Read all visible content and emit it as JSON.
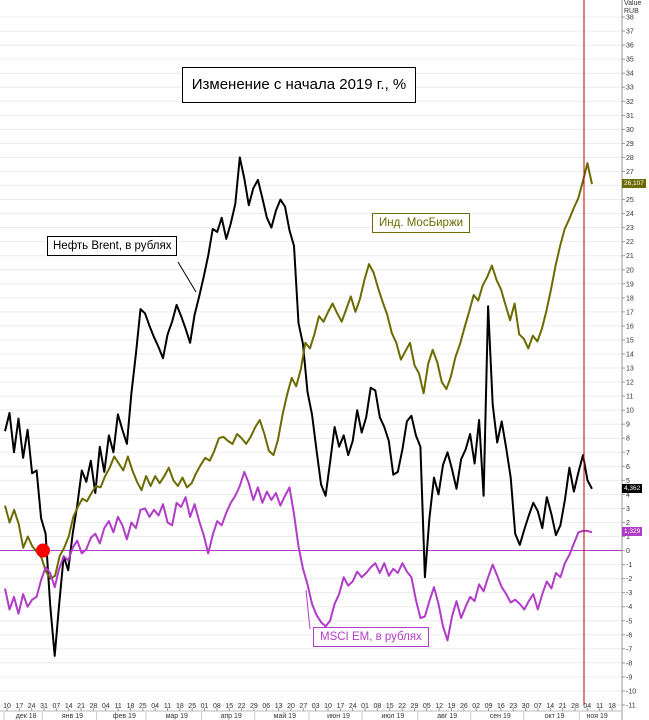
{
  "title": "Изменение с начала 2019 г., %",
  "unit_header": [
    "Value",
    "RUB"
  ],
  "chart_data": {
    "type": "line",
    "ylim": [
      -11,
      39
    ],
    "y_ticks": [
      -11,
      -10,
      -9,
      -8,
      -7,
      -6,
      -5,
      -4,
      -3,
      -2,
      -1,
      0,
      1,
      2,
      3,
      4,
      5,
      6,
      7,
      8,
      9,
      10,
      11,
      12,
      13,
      14,
      15,
      16,
      17,
      18,
      19,
      20,
      21,
      22,
      23,
      24,
      25,
      26,
      27,
      28,
      29,
      30,
      31,
      32,
      33,
      34,
      35,
      36,
      37,
      38
    ],
    "x_tick_labels": [
      "10",
      "17",
      "24",
      "31",
      "07",
      "14",
      "21",
      "28",
      "04",
      "11",
      "18",
      "25",
      "04",
      "11",
      "18",
      "25",
      "01",
      "08",
      "15",
      "22",
      "29",
      "06",
      "13",
      "20",
      "27",
      "03",
      "10",
      "17",
      "24",
      "01",
      "08",
      "15",
      "22",
      "29",
      "05",
      "12",
      "19",
      "26",
      "02",
      "09",
      "16",
      "23",
      "30",
      "07",
      "14",
      "21",
      "28",
      "04",
      "11",
      "18"
    ],
    "months": [
      "дек 18",
      "янв 19",
      "фев 19",
      "мар 19",
      "апр 19",
      "май 19",
      "июн 19",
      "июл 19",
      "авг 19",
      "сен 19",
      "окт 19",
      "ноя 19"
    ],
    "zero_line_color": "#b03cc8",
    "marker_color": "#ff0000",
    "series": [
      {
        "name": "Нефть Brent, в рублях",
        "color": "#000000",
        "last_value": "4,362",
        "values": [
          8.5,
          9.8,
          7.0,
          9.4,
          6.6,
          8.6,
          5.5,
          5.7,
          2.3,
          1.2,
          -3.9,
          -7.5,
          -3.8,
          -0.4,
          -1.4,
          1.2,
          3.2,
          5.7,
          4.9,
          6.4,
          4.1,
          7.4,
          5.6,
          8.2,
          7.0,
          9.7,
          8.6,
          7.6,
          11.2,
          14.0,
          17.2,
          16.9,
          16.0,
          15.2,
          14.5,
          13.7,
          15.4,
          16.3,
          17.5,
          16.7,
          15.8,
          14.8,
          16.8,
          18.1,
          19.5,
          21.0,
          22.9,
          22.7,
          23.7,
          22.2,
          23.3,
          24.7,
          28.0,
          26.5,
          24.6,
          25.8,
          26.4,
          25.1,
          23.7,
          23.0,
          24.2,
          25.0,
          24.5,
          22.8,
          21.7,
          16.2,
          14.7,
          11.3,
          9.7,
          7.1,
          4.7,
          3.9,
          6.3,
          8.8,
          7.4,
          8.2,
          6.8,
          7.8,
          10.0,
          8.4,
          9.5,
          11.6,
          11.4,
          9.5,
          8.8,
          7.8,
          5.4,
          5.6,
          7.2,
          9.2,
          9.6,
          8.2,
          7.4,
          -1.9,
          2.3,
          5.2,
          4.0,
          6.1,
          7.0,
          5.8,
          4.4,
          6.5,
          7.2,
          8.3,
          6.2,
          9.3,
          3.9,
          17.4,
          10.4,
          7.7,
          9.2,
          7.3,
          5.2,
          1.2,
          0.4,
          1.5,
          2.5,
          3.4,
          2.8,
          1.6,
          3.8,
          2.6,
          1.1,
          1.8,
          3.6,
          5.9,
          4.2,
          5.6,
          6.8,
          5.0,
          4.4
        ]
      },
      {
        "name": "Инд. МосБиржи",
        "color": "#6b6b00",
        "last_value": "26,107",
        "values": [
          3.2,
          2.0,
          2.9,
          1.9,
          0.2,
          1.0,
          0.3,
          -0.1,
          -0.5,
          -1.5,
          -2.0,
          -1.8,
          -0.4,
          0.2,
          1.0,
          2.4,
          3.1,
          3.7,
          3.5,
          4.1,
          4.6,
          4.5,
          5.3,
          5.9,
          6.7,
          6.2,
          5.7,
          6.7,
          5.7,
          4.9,
          4.3,
          5.3,
          4.6,
          5.3,
          4.8,
          5.3,
          5.9,
          5.0,
          4.6,
          5.2,
          4.5,
          4.8,
          5.5,
          6.1,
          6.6,
          6.4,
          7.1,
          8.0,
          8.1,
          7.8,
          7.6,
          8.3,
          8.0,
          7.6,
          8.1,
          8.8,
          9.3,
          8.3,
          7.1,
          6.8,
          7.9,
          9.7,
          11.1,
          12.3,
          11.7,
          12.9,
          14.8,
          14.4,
          15.4,
          16.7,
          16.3,
          17.0,
          17.6,
          16.9,
          16.3,
          17.2,
          18.1,
          17.0,
          17.9,
          19.3,
          20.4,
          19.8,
          18.7,
          17.7,
          16.8,
          15.5,
          14.8,
          13.6,
          14.2,
          14.8,
          13.2,
          12.6,
          11.2,
          13.3,
          14.3,
          13.4,
          12.0,
          11.5,
          12.4,
          13.8,
          14.7,
          15.9,
          17.0,
          18.2,
          17.8,
          18.9,
          19.5,
          20.3,
          19.3,
          18.6,
          17.5,
          16.4,
          17.6,
          15.4,
          15.1,
          14.4,
          15.3,
          14.9,
          15.8,
          17.1,
          18.6,
          20.3,
          21.7,
          22.9,
          23.6,
          24.4,
          25.1,
          26.3,
          27.6,
          26.1
        ]
      },
      {
        "name": "MSCI EM, в рублях",
        "color": "#b03cc8",
        "last_value": "1,329",
        "values": [
          -2.7,
          -4.2,
          -3.3,
          -4.5,
          -3.1,
          -4.0,
          -3.5,
          -3.3,
          -2.1,
          -1.2,
          -1.6,
          -2.6,
          -1.3,
          -0.4,
          -0.7,
          0.2,
          0.7,
          -0.2,
          0.1,
          0.9,
          1.2,
          0.5,
          1.6,
          2.1,
          1.3,
          2.4,
          1.8,
          0.8,
          2.0,
          1.6,
          2.9,
          3.0,
          2.4,
          2.9,
          2.5,
          3.3,
          2.0,
          1.8,
          3.4,
          3.1,
          3.8,
          2.4,
          3.3,
          2.1,
          1.1,
          -0.2,
          1.1,
          2.1,
          1.8,
          2.7,
          3.4,
          3.9,
          4.6,
          5.6,
          4.8,
          3.6,
          4.5,
          3.4,
          4.2,
          3.6,
          4.1,
          3.2,
          3.9,
          4.5,
          2.6,
          0.3,
          -1.3,
          -2.4,
          -3.8,
          -4.6,
          -5.1,
          -5.4,
          -5.0,
          -3.8,
          -3.1,
          -1.9,
          -2.5,
          -2.2,
          -1.5,
          -1.9,
          -1.6,
          -1.2,
          -0.9,
          -1.6,
          -0.9,
          -1.8,
          -1.3,
          -1.6,
          -0.9,
          -1.5,
          -1.9,
          -3.5,
          -4.8,
          -4.7,
          -3.6,
          -2.6,
          -3.8,
          -5.4,
          -6.4,
          -4.7,
          -3.6,
          -4.8,
          -4.0,
          -3.3,
          -3.6,
          -2.4,
          -2.9,
          -1.9,
          -1.0,
          -1.8,
          -2.6,
          -3.1,
          -3.7,
          -3.5,
          -3.8,
          -4.2,
          -3.6,
          -3.1,
          -4.2,
          -3.1,
          -2.2,
          -2.7,
          -1.6,
          -1.9,
          -0.9,
          -0.3,
          0.5,
          1.3,
          1.4,
          1.4,
          1.3
        ]
      }
    ]
  }
}
